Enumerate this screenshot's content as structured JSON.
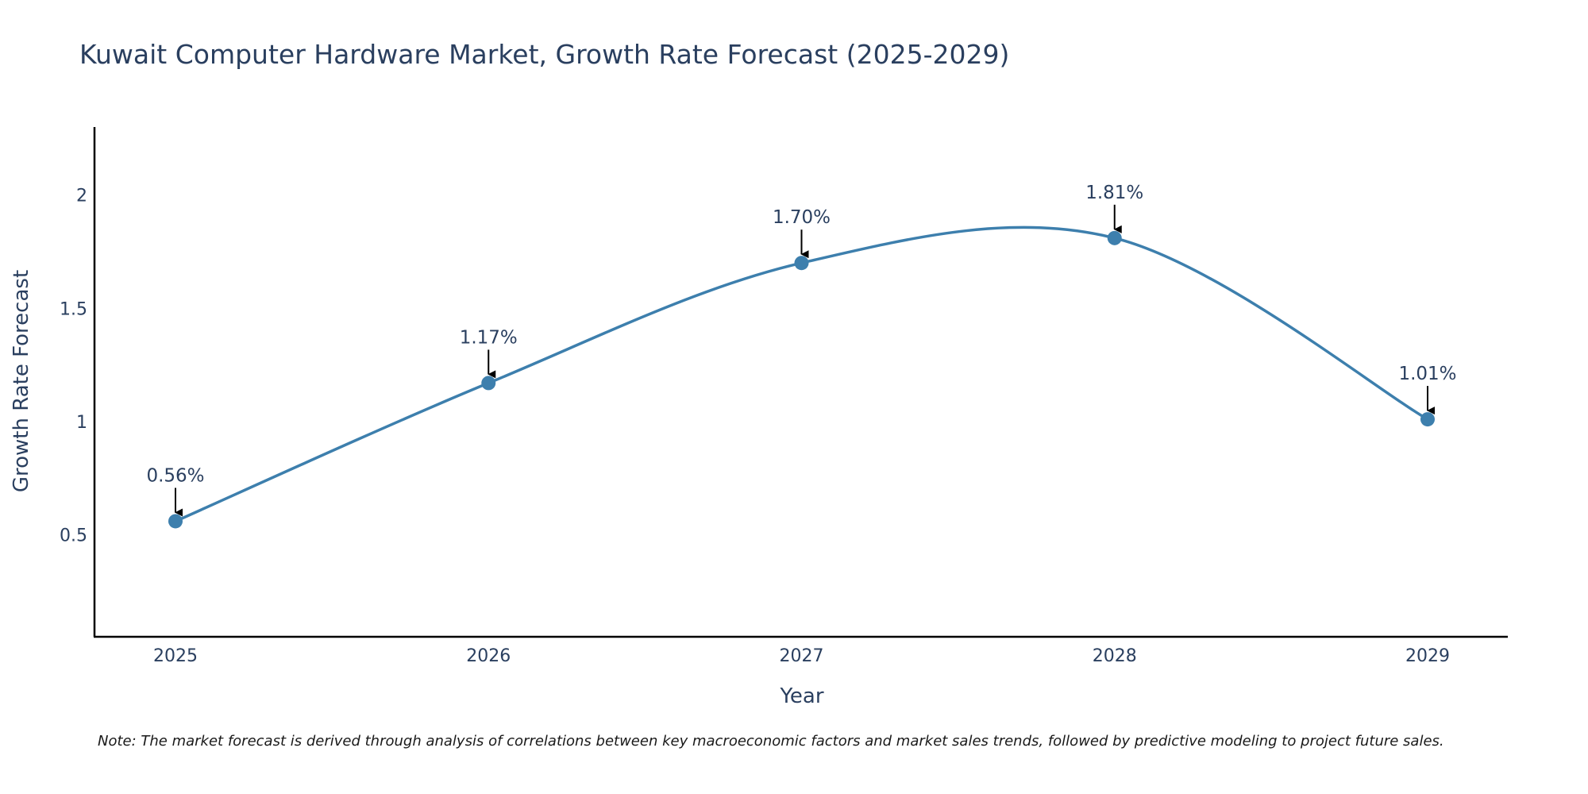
{
  "chart_data": {
    "type": "line",
    "title": "Kuwait Computer Hardware Market, Growth Rate Forecast (2025-2029)",
    "xlabel": "Year",
    "ylabel": "Growth Rate Forecast",
    "x": [
      "2025",
      "2026",
      "2027",
      "2028",
      "2029"
    ],
    "series": [
      {
        "values": [
          0.56,
          1.17,
          1.7,
          1.81,
          1.01
        ],
        "data_labels": [
          "0.56%",
          "1.17%",
          "1.70%",
          "1.81%",
          "1.01%"
        ]
      }
    ],
    "ylim": [
      0.05,
      2.3
    ],
    "y_ticks": [
      "0.5",
      "1",
      "1.5",
      "2"
    ],
    "y_tick_values": [
      0.5,
      1,
      1.5,
      2
    ],
    "grid": false,
    "line_color": "#3d7fad",
    "marker_color": "#3d7fad",
    "arrow_color": "#000000",
    "note": "Note: The market forecast is derived through analysis of correlations between key macroeconomic factors and market sales trends, followed by predictive modeling to project future sales."
  }
}
